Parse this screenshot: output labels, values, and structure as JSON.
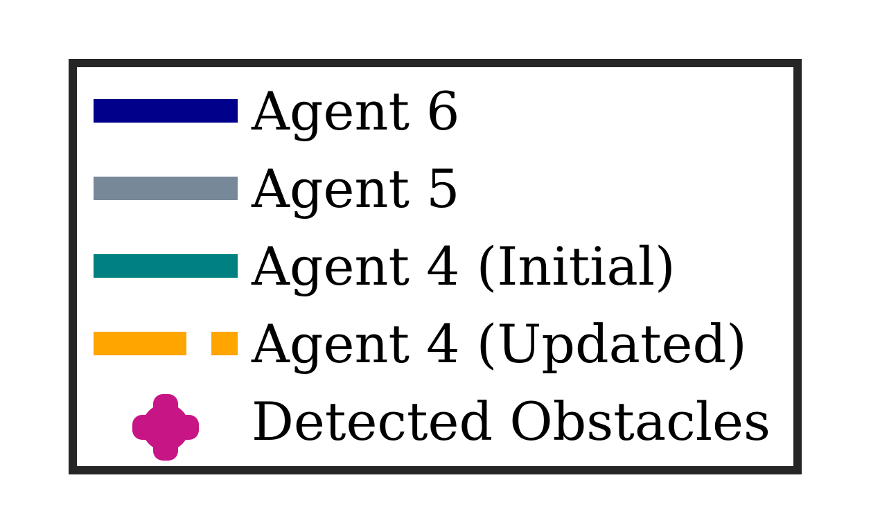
{
  "chart_data": {
    "type": "legend",
    "entries": [
      {
        "label": "Agent 6",
        "color": "#00008b",
        "style": "solid line"
      },
      {
        "label": "Agent 5",
        "color": "#778899",
        "style": "solid line"
      },
      {
        "label": "Agent 4 (Initial)",
        "color": "#008080",
        "style": "solid line"
      },
      {
        "label": "Agent 4 (Updated)",
        "color": "#ffa500",
        "style": "dashed line"
      },
      {
        "label": "Detected Obstacles",
        "color": "#c71585",
        "style": "plus marker"
      }
    ]
  }
}
